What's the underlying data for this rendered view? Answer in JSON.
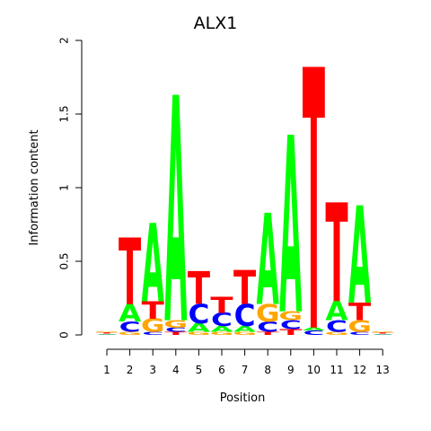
{
  "chart_data": {
    "type": "sequence-logo",
    "title": "ALX1",
    "xlabel": "Position",
    "ylabel": "Information content",
    "ylim": [
      0,
      2
    ],
    "y_ticks": [
      "0",
      "0.5",
      "1",
      "1.5",
      "2"
    ],
    "x_ticks": [
      "1",
      "2",
      "3",
      "4",
      "5",
      "6",
      "7",
      "8",
      "9",
      "10",
      "11",
      "12",
      "13"
    ],
    "colors": {
      "A": "#00ff00",
      "C": "#0000ff",
      "G": "#ffa500",
      "T": "#ff0000"
    },
    "positions": [
      {
        "position": 1,
        "stack": [
          [
            "A",
            0.004
          ],
          [
            "C",
            0.004
          ],
          [
            "T",
            0.006
          ],
          [
            "G",
            0.008
          ]
        ]
      },
      {
        "position": 2,
        "stack": [
          [
            "G",
            0.02
          ],
          [
            "C",
            0.07
          ],
          [
            "A",
            0.12
          ],
          [
            "T",
            0.45
          ]
        ]
      },
      {
        "position": 3,
        "stack": [
          [
            "C",
            0.02
          ],
          [
            "G",
            0.09
          ],
          [
            "T",
            0.12
          ],
          [
            "A",
            0.53
          ]
        ]
      },
      {
        "position": 4,
        "stack": [
          [
            "T",
            0.02
          ],
          [
            "C",
            0.03
          ],
          [
            "G",
            0.05
          ],
          [
            "A",
            1.53
          ]
        ]
      },
      {
        "position": 5,
        "stack": [
          [
            "G",
            0.02
          ],
          [
            "A",
            0.06
          ],
          [
            "C",
            0.13
          ],
          [
            "T",
            0.22
          ]
        ]
      },
      {
        "position": 6,
        "stack": [
          [
            "G",
            0.02
          ],
          [
            "A",
            0.04
          ],
          [
            "C",
            0.09
          ],
          [
            "T",
            0.11
          ]
        ]
      },
      {
        "position": 7,
        "stack": [
          [
            "G",
            0.02
          ],
          [
            "A",
            0.04
          ],
          [
            "C",
            0.15
          ],
          [
            "T",
            0.23
          ]
        ]
      },
      {
        "position": 8,
        "stack": [
          [
            "T",
            0.02
          ],
          [
            "C",
            0.07
          ],
          [
            "G",
            0.12
          ],
          [
            "A",
            0.62
          ]
        ]
      },
      {
        "position": 9,
        "stack": [
          [
            "T",
            0.04
          ],
          [
            "C",
            0.06
          ],
          [
            "G",
            0.06
          ],
          [
            "A",
            1.2
          ]
        ]
      },
      {
        "position": 10,
        "stack": [
          [
            "C",
            0.03
          ],
          [
            "A",
            0.02
          ],
          [
            "T",
            1.77
          ]
        ]
      },
      {
        "position": 11,
        "stack": [
          [
            "G",
            0.02
          ],
          [
            "C",
            0.08
          ],
          [
            "A",
            0.13
          ],
          [
            "T",
            0.67
          ]
        ]
      },
      {
        "position": 12,
        "stack": [
          [
            "C",
            0.02
          ],
          [
            "G",
            0.08
          ],
          [
            "T",
            0.12
          ],
          [
            "A",
            0.66
          ]
        ]
      },
      {
        "position": 13,
        "stack": [
          [
            "A",
            0.004
          ],
          [
            "C",
            0.004
          ],
          [
            "T",
            0.006
          ],
          [
            "G",
            0.008
          ]
        ]
      }
    ]
  }
}
